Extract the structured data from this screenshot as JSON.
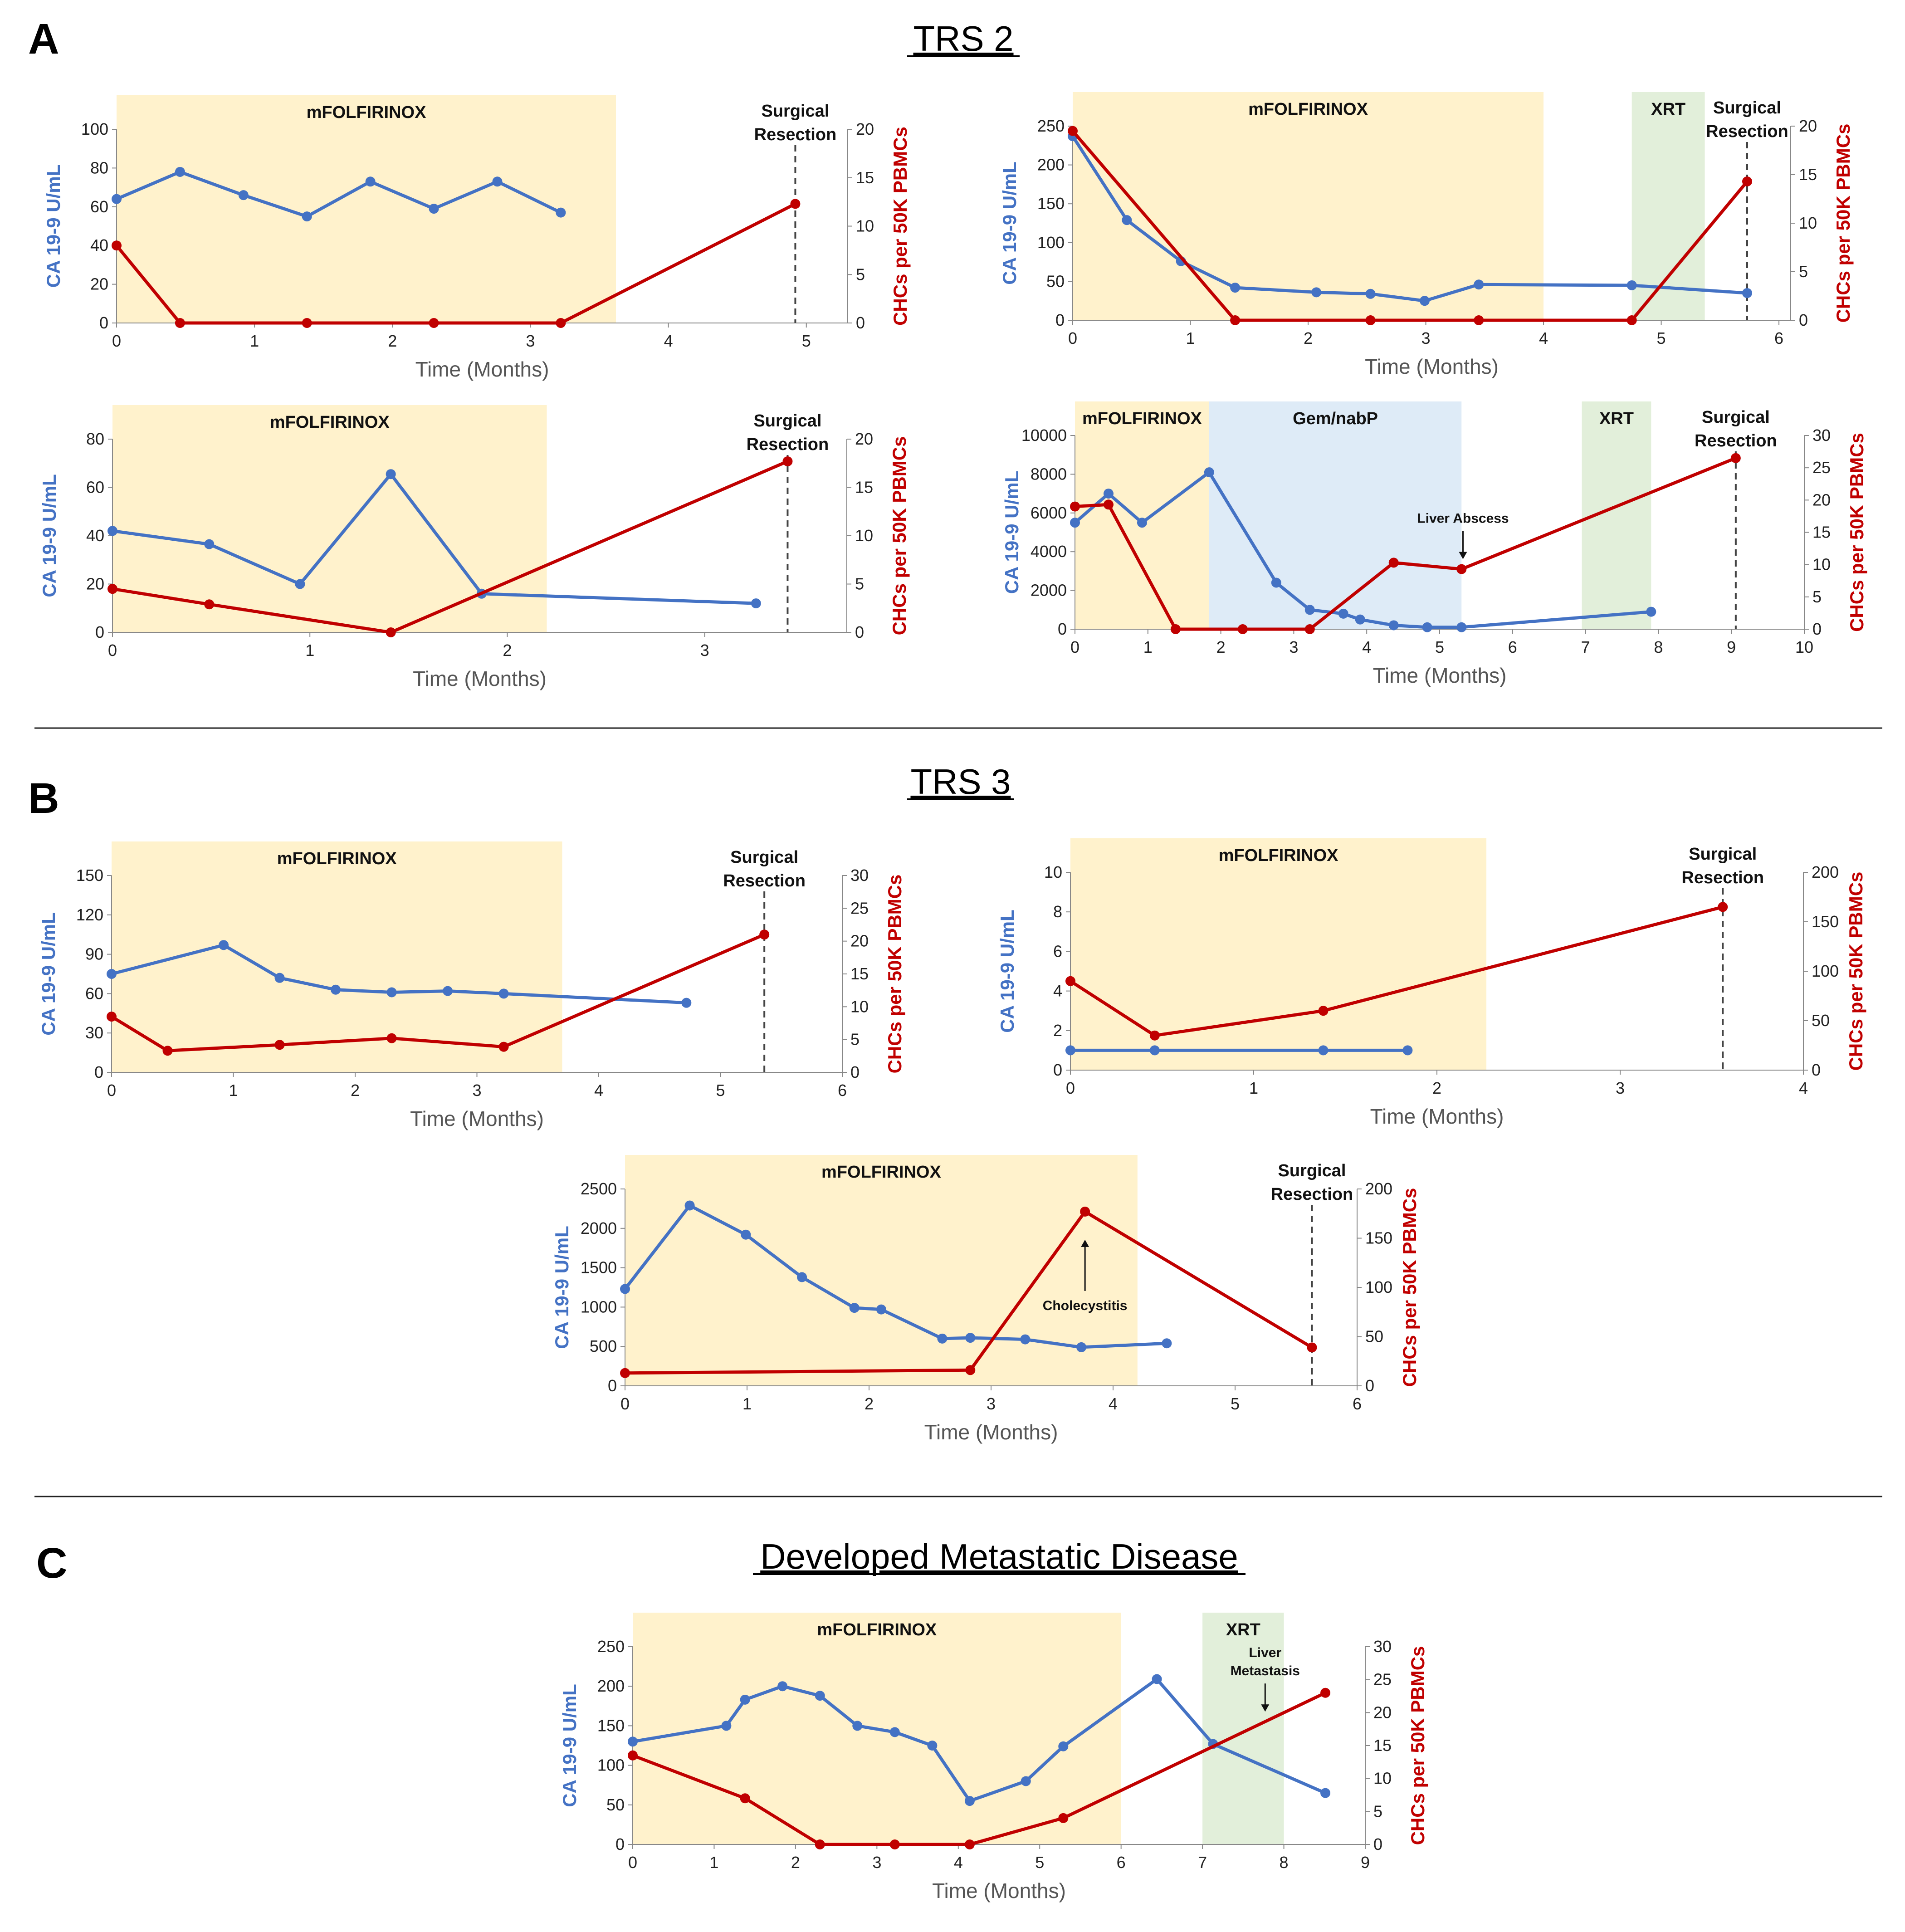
{
  "figure": {
    "sections": [
      {
        "letter": "A",
        "title": "TRS 2"
      },
      {
        "letter": "B",
        "title": "TRS 3"
      },
      {
        "letter": "C",
        "title": "Developed Metastatic Disease"
      }
    ]
  },
  "colors": {
    "ca199": "#4472C4",
    "chc": "#C00000",
    "chemo_band": "#FFF2CC",
    "gem_band": "#DEEBF7",
    "xrt_band": "#E2EFDA",
    "axis": "#888888"
  },
  "chart_data": [
    {
      "id": "A1",
      "type": "line",
      "xlabel": "Time  (Months)",
      "ylabel_left": "CA 19-9 U/mL",
      "ylabel_right": "CHCs per 50K PBMCs",
      "xlim": [
        0,
        5.3
      ],
      "xticks": [
        0,
        1,
        2,
        3,
        4,
        5
      ],
      "ylim_left": [
        0,
        100
      ],
      "yticks_left": [
        0,
        20,
        40,
        60,
        80,
        100
      ],
      "ylim_right": [
        0,
        20
      ],
      "yticks_right": [
        0,
        5,
        10,
        15,
        20
      ],
      "phases": [
        {
          "label": "mFOLFIRINOX",
          "start": 0,
          "end": 3.62,
          "kind": "chemo"
        }
      ],
      "events": [
        {
          "label_lines": [
            "Surgical",
            "Resection"
          ],
          "x": 4.92,
          "style": "dashed"
        }
      ],
      "series": [
        {
          "name": "CA 19-9 U/mL",
          "axis": "left",
          "x": [
            0,
            0.46,
            0.92,
            1.38,
            1.84,
            2.3,
            2.76,
            3.22
          ],
          "y": [
            64,
            78,
            66,
            55,
            73,
            59,
            73,
            57
          ]
        },
        {
          "name": "CHCs per 50K PBMCs",
          "axis": "right",
          "x": [
            0,
            0.46,
            1.38,
            2.3,
            3.22,
            4.92
          ],
          "y": [
            8,
            0,
            0,
            0,
            0,
            12.3
          ]
        }
      ]
    },
    {
      "id": "A2",
      "type": "line",
      "xlabel": "Time  (Months)",
      "ylabel_left": "CA 19-9 U/mL",
      "ylabel_right": "CHCs per 50K PBMCs",
      "xlim": [
        0,
        6.1
      ],
      "xticks": [
        0,
        1,
        2,
        3,
        4,
        5,
        6
      ],
      "ylim_left": [
        0,
        250
      ],
      "yticks_left": [
        0,
        50,
        100,
        150,
        200,
        250
      ],
      "ylim_right": [
        0,
        20
      ],
      "yticks_right": [
        0,
        5,
        10,
        15,
        20
      ],
      "phases": [
        {
          "label": "mFOLFIRINOX",
          "start": 0,
          "end": 4.0,
          "kind": "chemo"
        },
        {
          "label": "XRT",
          "start": 4.75,
          "end": 5.37,
          "kind": "xrt"
        }
      ],
      "events": [
        {
          "label_lines": [
            "Surgical",
            "Resection"
          ],
          "x": 5.73,
          "style": "dashed"
        }
      ],
      "series": [
        {
          "name": "CA 19-9 U/mL",
          "axis": "left",
          "x": [
            0,
            0.46,
            0.92,
            1.38,
            2.07,
            2.53,
            2.99,
            3.45,
            4.75,
            5.73
          ],
          "y": [
            237,
            129,
            76,
            42,
            36,
            34,
            25,
            46,
            45,
            35
          ]
        },
        {
          "name": "CHCs per 50K PBMCs",
          "axis": "right",
          "x": [
            0,
            1.38,
            2.53,
            3.45,
            4.75,
            5.73
          ],
          "y": [
            19.5,
            0,
            0,
            0,
            0,
            14.3
          ]
        }
      ]
    },
    {
      "id": "A3",
      "type": "line",
      "xlabel": "Time  (Months)",
      "ylabel_left": "CA 19-9 U/mL",
      "ylabel_right": "CHCs per 50K PBMCs",
      "xlim": [
        0,
        3.72
      ],
      "xticks": [
        0,
        1,
        2,
        3
      ],
      "ylim_left": [
        0,
        80
      ],
      "yticks_left": [
        0,
        20,
        40,
        60,
        80
      ],
      "ylim_right": [
        0,
        20
      ],
      "yticks_right": [
        0,
        5,
        10,
        15,
        20
      ],
      "phases": [
        {
          "label": "mFOLFIRINOX",
          "start": 0,
          "end": 2.2,
          "kind": "chemo"
        }
      ],
      "events": [
        {
          "label_lines": [
            "Surgical",
            "Resection"
          ],
          "x": 3.42,
          "style": "dashed"
        }
      ],
      "series": [
        {
          "name": "CA 19-9 U/mL",
          "axis": "left",
          "x": [
            0,
            0.49,
            0.95,
            1.41,
            1.87,
            3.26
          ],
          "y": [
            42,
            36.5,
            20,
            65.5,
            16,
            12
          ]
        },
        {
          "name": "CHCs per 50K PBMCs",
          "axis": "right",
          "x": [
            0,
            0.49,
            1.41,
            3.42
          ],
          "y": [
            4.5,
            2.9,
            0,
            17.7
          ]
        }
      ]
    },
    {
      "id": "A4",
      "type": "line",
      "xlabel": "Time  (Months)",
      "ylabel_left": "CA 19-9 U/mL",
      "ylabel_right": "CHCs per 50K PBMCs",
      "xlim": [
        0,
        10
      ],
      "xticks": [
        0,
        1,
        2,
        3,
        4,
        5,
        6,
        7,
        8,
        9,
        10
      ],
      "ylim_left": [
        0,
        10000
      ],
      "yticks_left": [
        0,
        2000,
        4000,
        6000,
        8000,
        10000
      ],
      "ylim_right": [
        0,
        30
      ],
      "yticks_right": [
        0,
        5,
        10,
        15,
        20,
        25,
        30
      ],
      "phases": [
        {
          "label": "mFOLFIRINOX",
          "start": 0,
          "end": 1.84,
          "kind": "chemo"
        },
        {
          "label": "Gem/nabP",
          "start": 1.84,
          "end": 5.3,
          "kind": "gem"
        },
        {
          "label": "XRT",
          "start": 6.95,
          "end": 7.9,
          "kind": "xrt"
        }
      ],
      "events": [
        {
          "label_lines": [
            "Surgical",
            "Resection"
          ],
          "x": 9.06,
          "style": "dashed"
        },
        {
          "label_lines": [
            "Liver Abscess"
          ],
          "x": 5.32,
          "style": "arrow"
        }
      ],
      "series": [
        {
          "name": "CA 19-9 U/mL",
          "axis": "left",
          "x": [
            0,
            0.46,
            0.92,
            1.84,
            2.76,
            3.22,
            3.68,
            3.91,
            4.37,
            4.83,
            5.3,
            7.9
          ],
          "y": [
            5500,
            7000,
            5500,
            8100,
            2400,
            1000,
            800,
            500,
            200,
            100,
            100,
            900
          ]
        },
        {
          "name": "CHCs per 50K PBMCs",
          "axis": "right",
          "x": [
            0,
            0.46,
            1.38,
            2.3,
            3.22,
            4.37,
            5.3,
            9.06
          ],
          "y": [
            19,
            19.3,
            0,
            0,
            0,
            10.3,
            9.3,
            26.5
          ]
        }
      ]
    },
    {
      "id": "B1",
      "type": "line",
      "xlabel": "Time  (Months)",
      "ylabel_left": "CA 19-9 U/mL",
      "ylabel_right": "CHCs per 50K PBMCs",
      "xlim": [
        0,
        6
      ],
      "xticks": [
        0,
        1,
        2,
        3,
        4,
        5,
        6
      ],
      "ylim_left": [
        0,
        150
      ],
      "yticks_left": [
        0,
        30,
        60,
        90,
        120,
        150
      ],
      "ylim_right": [
        0,
        30
      ],
      "yticks_right": [
        0,
        5,
        10,
        15,
        20,
        25,
        30
      ],
      "phases": [
        {
          "label": "mFOLFIRINOX",
          "start": 0,
          "end": 3.7,
          "kind": "chemo"
        }
      ],
      "events": [
        {
          "label_lines": [
            "Surgical",
            "Resection"
          ],
          "x": 5.36,
          "style": "dashed"
        }
      ],
      "series": [
        {
          "name": "CA 19-9 U/mL",
          "axis": "left",
          "x": [
            0,
            0.92,
            1.38,
            1.84,
            2.3,
            2.76,
            3.22,
            4.72
          ],
          "y": [
            75,
            97,
            72,
            63,
            61,
            62,
            60,
            53
          ]
        },
        {
          "name": "CHCs per 50K PBMCs",
          "axis": "right",
          "x": [
            0,
            0.46,
            1.38,
            2.3,
            3.22,
            5.36
          ],
          "y": [
            8.5,
            3.3,
            4.2,
            5.2,
            3.9,
            21
          ]
        }
      ]
    },
    {
      "id": "B2",
      "type": "line",
      "xlabel": "Time  (Months)",
      "ylabel_left": "CA 19-9 U/mL",
      "ylabel_right": "CHCs per 50K PBMCs",
      "xlim": [
        0,
        4
      ],
      "xticks": [
        0,
        1,
        2,
        3,
        4
      ],
      "ylim_left": [
        0,
        10
      ],
      "yticks_left": [
        0,
        2,
        4,
        6,
        8,
        10
      ],
      "ylim_right": [
        0,
        200
      ],
      "yticks_right": [
        0,
        50,
        100,
        150,
        200
      ],
      "phases": [
        {
          "label": "mFOLFIRINOX",
          "start": 0,
          "end": 2.27,
          "kind": "chemo"
        }
      ],
      "events": [
        {
          "label_lines": [
            "Surgical",
            "Resection"
          ],
          "x": 3.56,
          "style": "dashed"
        }
      ],
      "series": [
        {
          "name": "CA 19-9 U/mL",
          "axis": "left",
          "x": [
            0,
            0.46,
            1.38,
            1.84
          ],
          "y": [
            1,
            1,
            1,
            1
          ]
        },
        {
          "name": "CHCs per 50K PBMCs",
          "axis": "right",
          "x": [
            0,
            0.46,
            1.38,
            3.56
          ],
          "y": [
            90,
            35,
            60,
            165
          ]
        }
      ]
    },
    {
      "id": "B3",
      "type": "line",
      "xlabel": "Time  (Months)",
      "ylabel_left": "CA 19-9 U/mL",
      "ylabel_right": "CHCs per 50K PBMCs",
      "xlim": [
        0,
        6
      ],
      "xticks": [
        0,
        1,
        2,
        3,
        4,
        5,
        6
      ],
      "ylim_left": [
        0,
        2500
      ],
      "yticks_left": [
        0,
        500,
        1000,
        1500,
        2000,
        2500
      ],
      "ylim_right": [
        0,
        200
      ],
      "yticks_right": [
        0,
        50,
        100,
        150,
        200
      ],
      "phases": [
        {
          "label": "mFOLFIRINOX",
          "start": 0,
          "end": 4.2,
          "kind": "chemo"
        }
      ],
      "events": [
        {
          "label_lines": [
            "Surgical",
            "Resection"
          ],
          "x": 5.63,
          "style": "dashed"
        },
        {
          "label_lines": [
            "Cholecystitis"
          ],
          "x": 3.77,
          "style": "arrow-up"
        }
      ],
      "series": [
        {
          "name": "CA 19-9 U/mL",
          "axis": "left",
          "x": [
            0,
            0.53,
            0.99,
            1.45,
            1.88,
            2.1,
            2.6,
            2.83,
            3.28,
            3.74,
            4.44
          ],
          "y": [
            1230,
            2290,
            1920,
            1380,
            990,
            970,
            600,
            610,
            590,
            490,
            540
          ]
        },
        {
          "name": "CHCs per 50K PBMCs",
          "axis": "right",
          "x": [
            0,
            2.83,
            3.77,
            5.63
          ],
          "y": [
            13,
            16,
            177,
            39
          ]
        }
      ]
    },
    {
      "id": "C1",
      "type": "line",
      "xlabel": "Time  (Months)",
      "ylabel_left": "CA 19-9 U/mL",
      "ylabel_right": "CHCs per 50K PBMCs",
      "xlim": [
        0,
        9
      ],
      "xticks": [
        0,
        1,
        2,
        3,
        4,
        5,
        6,
        7,
        8,
        9
      ],
      "ylim_left": [
        0,
        250
      ],
      "yticks_left": [
        0,
        50,
        100,
        150,
        200,
        250
      ],
      "ylim_right": [
        0,
        30
      ],
      "yticks_right": [
        0,
        5,
        10,
        15,
        20,
        25,
        30
      ],
      "phases": [
        {
          "label": "mFOLFIRINOX",
          "start": 0,
          "end": 6.0,
          "kind": "chemo"
        },
        {
          "label": "XRT",
          "start": 7.0,
          "end": 8.0,
          "kind": "xrt"
        }
      ],
      "events": [
        {
          "label_lines": [
            "Liver",
            "Metastasis"
          ],
          "x": 7.77,
          "style": "arrow"
        }
      ],
      "series": [
        {
          "name": "CA 19-9 U/mL",
          "axis": "left",
          "x": [
            0,
            1.15,
            1.38,
            1.84,
            2.3,
            2.76,
            3.22,
            3.68,
            4.14,
            4.83,
            5.29,
            6.44,
            7.13,
            8.51
          ],
          "y": [
            130,
            150,
            183,
            200,
            188,
            150,
            142,
            125,
            55,
            80,
            124,
            209,
            127,
            65
          ]
        },
        {
          "name": "CHCs per 50K PBMCs",
          "axis": "right",
          "x": [
            0,
            1.38,
            2.3,
            3.22,
            4.14,
            5.29,
            8.51
          ],
          "y": [
            13.5,
            7,
            0,
            0,
            0,
            4,
            23
          ]
        }
      ]
    }
  ]
}
